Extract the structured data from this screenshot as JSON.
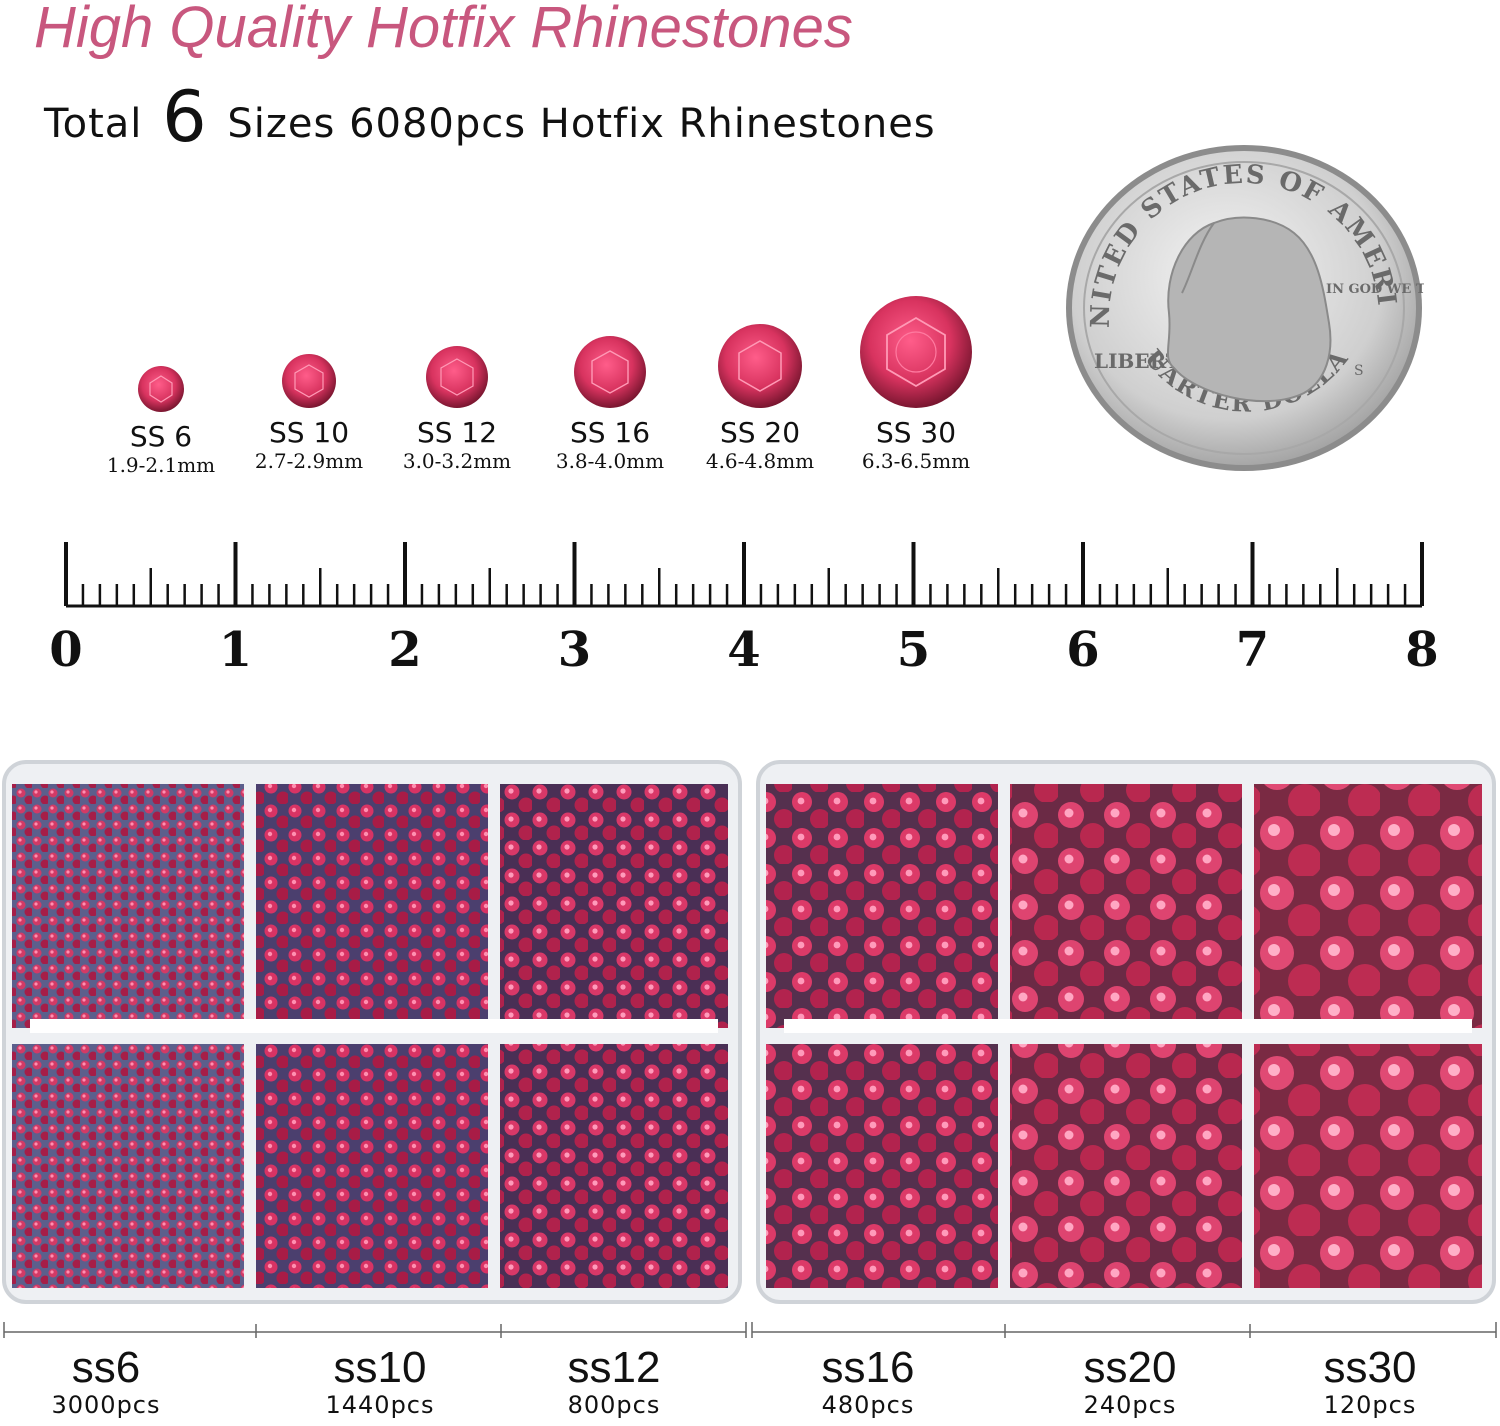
{
  "header": {
    "title": "High Quality Hotfix Rhinestones",
    "subtitle_pre": "Total",
    "subtitle_num": "6",
    "subtitle_post": "Sizes 6080pcs Hotfix Rhinestones"
  },
  "stones": [
    {
      "name": "SS 6",
      "mm": "1.9-2.1mm"
    },
    {
      "name": "SS 10",
      "mm": "2.7-2.9mm"
    },
    {
      "name": "SS 12",
      "mm": "3.0-3.2mm"
    },
    {
      "name": "SS 16",
      "mm": "3.8-4.0mm"
    },
    {
      "name": "SS 20",
      "mm": "4.6-4.8mm"
    },
    {
      "name": "SS 30",
      "mm": "6.3-6.5mm"
    }
  ],
  "coin": {
    "top_text": "UNITED STATES OF AMERICA",
    "motto": "IN GOD WE TRUST",
    "liberty": "LIBERTY",
    "bottom_text": "QUARTER DOLLAR",
    "mint": "S"
  },
  "ruler": {
    "labels": [
      "0",
      "1",
      "2",
      "3",
      "4",
      "5",
      "6",
      "7",
      "8"
    ]
  },
  "trays": [
    {
      "name": "ss6",
      "count": "3000pcs"
    },
    {
      "name": "ss10",
      "count": "1440pcs"
    },
    {
      "name": "ss12",
      "count": "800pcs"
    },
    {
      "name": "ss16",
      "count": "480pcs"
    },
    {
      "name": "ss20",
      "count": "240pcs"
    },
    {
      "name": "ss30",
      "count": "120pcs"
    }
  ],
  "colors": {
    "title": "#c8577e",
    "gem": "#d8335f",
    "gem_dark": "#7a1630",
    "backing": "#6d6f9a"
  }
}
